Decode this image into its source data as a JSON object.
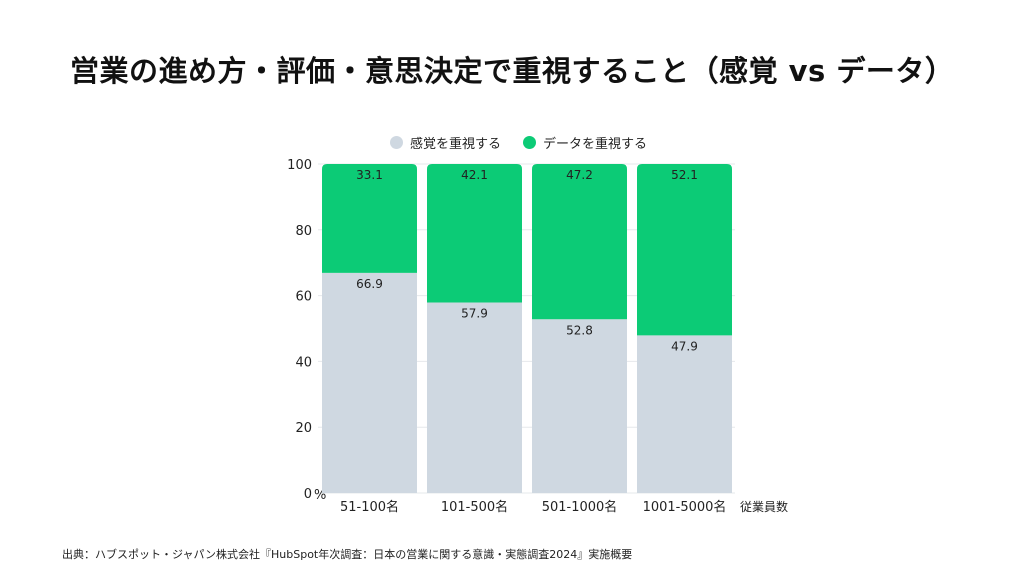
{
  "title": "営業の進め方・評価・意思決定で重視すること（感覚 vs データ）",
  "source": "出典：ハブスポット・ジャパン株式会社『HubSpot年次調査：日本の営業に関する意識・実態調査2024』実施概要",
  "colors": {
    "series_feeling": "#cfd8e1",
    "series_data": "#0ccb76",
    "grid": "#e6e8eb",
    "text": "#222222"
  },
  "chart_data": {
    "type": "bar",
    "stacked": true,
    "categories": [
      "51-100名",
      "101-500名",
      "501-1000名",
      "1001-5000名"
    ],
    "series": [
      {
        "name": "感覚を重視する",
        "values": [
          66.9,
          57.9,
          52.8,
          47.9
        ]
      },
      {
        "name": "データを重視する",
        "values": [
          33.1,
          42.1,
          47.2,
          52.1
        ]
      }
    ],
    "y_ticks": [
      "0",
      "20",
      "40",
      "60",
      "80",
      "100"
    ],
    "y_unit": "%",
    "xlabel": "従業員数",
    "ylim": [
      0,
      100
    ],
    "grid": true,
    "legend_position": "top"
  }
}
